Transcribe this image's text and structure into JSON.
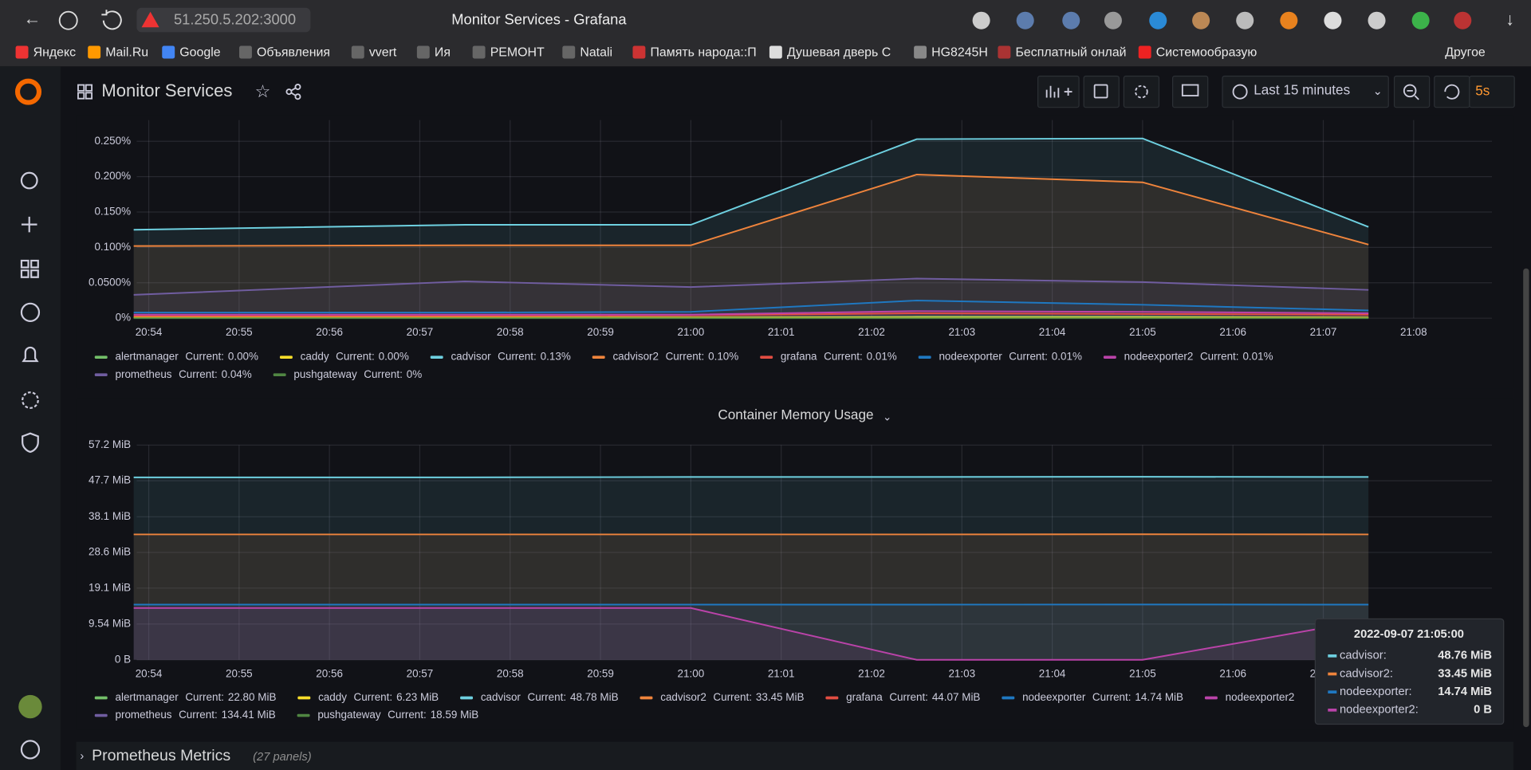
{
  "browser": {
    "url": "51.250.5.202:3000",
    "tab_title": "Monitor Services - Grafana",
    "bookmarks": [
      "Яндекс",
      "Mail.Ru",
      "Google",
      "Объявления",
      "vvert",
      "Ия",
      "РЕМОНТ",
      "Natali",
      "Память народа::П",
      "Душевая дверь С",
      "HG8245H",
      "Бесплатный онлай",
      "Системообразую"
    ],
    "other_bookmarks": "Другое"
  },
  "dashboard": {
    "title": "Monitor Services",
    "time_range": "Last 15 minutes",
    "refresh": "5s"
  },
  "chart_data": [
    {
      "type": "line",
      "current_label": "Current:",
      "x": [
        "20:53:50",
        "20:57:30",
        "21:00:00",
        "21:02:30",
        "21:05:00",
        "21:07:30"
      ],
      "xlim": [
        "20:53:52",
        "21:08:52"
      ],
      "xticks": [
        "20:54",
        "20:55",
        "20:56",
        "20:57",
        "20:58",
        "20:59",
        "21:00",
        "21:01",
        "21:02",
        "21:03",
        "21:04",
        "21:05",
        "21:06",
        "21:07",
        "21:08"
      ],
      "ylim": [
        0,
        0.28
      ],
      "yticks": [
        {
          "value": 0,
          "label": "0%"
        },
        {
          "value": 0.05,
          "label": "0.0500%"
        },
        {
          "value": 0.1,
          "label": "0.100%"
        },
        {
          "value": 0.15,
          "label": "0.150%"
        },
        {
          "value": 0.2,
          "label": "0.200%"
        },
        {
          "value": 0.25,
          "label": "0.250%"
        }
      ],
      "grid": true,
      "series": [
        {
          "name": "alertmanager",
          "color": "#73bf69",
          "current": "0.00%",
          "values": [
            0.001,
            0.001,
            0.001,
            0.002,
            0.002,
            0.001
          ]
        },
        {
          "name": "caddy",
          "color": "#fade2a",
          "current": "0.00%",
          "values": [
            0.001,
            0.001,
            0.001,
            0.001,
            0.001,
            0.001
          ]
        },
        {
          "name": "cadvisor",
          "color": "#6ed0e0",
          "current": "0.13%",
          "values": [
            0.125,
            0.132,
            0.132,
            0.253,
            0.254,
            0.129
          ]
        },
        {
          "name": "cadvisor2",
          "color": "#ef843c",
          "current": "0.10%",
          "values": [
            0.102,
            0.103,
            0.103,
            0.203,
            0.192,
            0.104
          ]
        },
        {
          "name": "grafana",
          "color": "#e24d42",
          "current": "0.01%",
          "values": [
            0.003,
            0.003,
            0.004,
            0.007,
            0.006,
            0.005
          ]
        },
        {
          "name": "nodeexporter",
          "color": "#1f78c1",
          "current": "0.01%",
          "values": [
            0.008,
            0.008,
            0.009,
            0.025,
            0.019,
            0.011
          ]
        },
        {
          "name": "nodeexporter2",
          "color": "#ba43a9",
          "current": "0.01%",
          "values": [
            0.005,
            0.005,
            0.005,
            0.01,
            0.009,
            0.007
          ]
        },
        {
          "name": "prometheus",
          "color": "#705da0",
          "current": "0.04%",
          "values": [
            0.033,
            0.052,
            0.044,
            0.056,
            0.051,
            0.04
          ]
        },
        {
          "name": "pushgateway",
          "color": "#508642",
          "current": "0%",
          "values": [
            0,
            0,
            0,
            0,
            0,
            0
          ]
        }
      ]
    },
    {
      "type": "line",
      "title": "Container Memory Usage",
      "current_label": "Current:",
      "x": [
        "20:53:50",
        "20:57:30",
        "21:00:00",
        "21:02:30",
        "21:05:00",
        "21:07:30"
      ],
      "xlim": [
        "20:53:52",
        "21:08:52"
      ],
      "xticks": [
        "20:54",
        "20:55",
        "20:56",
        "20:57",
        "20:58",
        "20:59",
        "21:00",
        "21:01",
        "21:02",
        "21:03",
        "21:04",
        "21:05",
        "21:06",
        "21:07"
      ],
      "ylim": [
        0,
        57.2
      ],
      "yticks": [
        {
          "value": 0,
          "label": "0 B"
        },
        {
          "value": 9.54,
          "label": "9.54 MiB"
        },
        {
          "value": 19.1,
          "label": "19.1 MiB"
        },
        {
          "value": 28.6,
          "label": "28.6 MiB"
        },
        {
          "value": 38.1,
          "label": "38.1 MiB"
        },
        {
          "value": 47.7,
          "label": "47.7 MiB"
        },
        {
          "value": 57.2,
          "label": "57.2 MiB"
        }
      ],
      "grid": true,
      "series": [
        {
          "name": "alertmanager",
          "color": "#73bf69",
          "current": "22.80 MiB"
        },
        {
          "name": "caddy",
          "color": "#fade2a",
          "current": "6.23 MiB"
        },
        {
          "name": "cadvisor",
          "color": "#6ed0e0",
          "current": "48.78 MiB",
          "values": [
            48.6,
            48.6,
            48.7,
            48.7,
            48.76,
            48.7
          ]
        },
        {
          "name": "cadvisor2",
          "color": "#ef843c",
          "current": "33.45 MiB",
          "values": [
            33.4,
            33.4,
            33.4,
            33.4,
            33.45,
            33.4
          ]
        },
        {
          "name": "grafana",
          "color": "#e24d42",
          "current": "44.07 MiB"
        },
        {
          "name": "nodeexporter",
          "color": "#1f78c1",
          "current": "14.74 MiB",
          "values": [
            14.7,
            14.7,
            14.7,
            14.7,
            14.74,
            14.7
          ]
        },
        {
          "name": "nodeexporter2",
          "color": "#ba43a9",
          "values": [
            13.8,
            13.8,
            13.8,
            0,
            0,
            10.6
          ]
        },
        {
          "name": "prometheus",
          "color": "#705da0",
          "current": "134.41 MiB"
        },
        {
          "name": "pushgateway",
          "color": "#508642",
          "current": "18.59 MiB"
        }
      ]
    }
  ],
  "tooltip": {
    "time": "2022-09-07 21:05:00",
    "items": [
      {
        "name": "cadvisor:",
        "value": "48.76 MiB"
      },
      {
        "name": "cadvisor2:",
        "value": "33.45 MiB"
      },
      {
        "name": "nodeexporter:",
        "value": "14.74 MiB"
      },
      {
        "name": "nodeexporter2:",
        "value": "0 B"
      }
    ]
  },
  "row": {
    "title": "Prometheus Metrics",
    "panel_count": "(27 panels)"
  }
}
